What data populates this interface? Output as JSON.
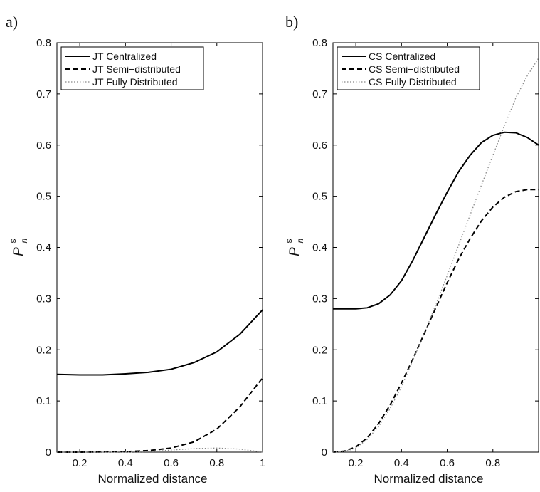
{
  "chart_data": [
    {
      "panel_label": "a)",
      "type": "line",
      "xlabel": "Normalized distance",
      "ylabel": "P",
      "ylabel_sub": "n",
      "ylabel_sup": "s",
      "xlim": [
        0.1,
        1.0
      ],
      "ylim": [
        0,
        0.8
      ],
      "xticks": [
        0.2,
        0.4,
        0.6,
        0.8,
        1
      ],
      "xtick_labels": [
        "0.2",
        "0.4",
        "0.6",
        "0.8",
        "1"
      ],
      "yticks": [
        0,
        0.1,
        0.2,
        0.3,
        0.4,
        0.5,
        0.6,
        0.7,
        0.8
      ],
      "ytick_labels": [
        "0",
        "0.1",
        "0.2",
        "0.3",
        "0.4",
        "0.5",
        "0.6",
        "0.7",
        "0.8"
      ],
      "grid": false,
      "legend_position": "top-left",
      "x": [
        0.1,
        0.2,
        0.3,
        0.4,
        0.5,
        0.6,
        0.7,
        0.8,
        0.9,
        1.0
      ],
      "series": [
        {
          "name": "JT Centralized",
          "style": "solid",
          "color": "#000000",
          "values": [
            0.152,
            0.151,
            0.151,
            0.153,
            0.156,
            0.162,
            0.175,
            0.196,
            0.23,
            0.278
          ]
        },
        {
          "name": "JT Semi−distributed",
          "style": "dashed",
          "color": "#000000",
          "values": [
            0.0,
            0.0,
            0.0005,
            0.001,
            0.003,
            0.008,
            0.02,
            0.045,
            0.088,
            0.145
          ]
        },
        {
          "name": "JT Fully Distributed",
          "style": "dotted",
          "color": "#888888",
          "values": [
            0.0,
            0.0,
            0.0,
            0.0,
            0.001,
            0.004,
            0.007,
            0.008,
            0.006,
            0.0
          ]
        }
      ]
    },
    {
      "panel_label": "b)",
      "type": "line",
      "xlabel": "Normalized distance",
      "ylabel": "P",
      "ylabel_sub": "n",
      "ylabel_sup": "s",
      "xlim": [
        0.1,
        1.0
      ],
      "ylim": [
        0,
        0.8
      ],
      "xticks": [
        0.2,
        0.4,
        0.6,
        0.8
      ],
      "xtick_labels": [
        "0.2",
        "0.4",
        "0.6",
        "0.8"
      ],
      "yticks": [
        0,
        0.1,
        0.2,
        0.3,
        0.4,
        0.5,
        0.6,
        0.7,
        0.8
      ],
      "ytick_labels": [
        "0",
        "0.1",
        "0.2",
        "0.3",
        "0.4",
        "0.5",
        "0.6",
        "0.7",
        "0.8"
      ],
      "grid": false,
      "legend_position": "top-left",
      "x": [
        0.1,
        0.15,
        0.2,
        0.25,
        0.3,
        0.35,
        0.4,
        0.45,
        0.5,
        0.55,
        0.6,
        0.65,
        0.7,
        0.75,
        0.8,
        0.85,
        0.9,
        0.95,
        1.0
      ],
      "series": [
        {
          "name": "CS Centralized",
          "style": "solid",
          "color": "#000000",
          "values": [
            0.28,
            0.28,
            0.28,
            0.282,
            0.29,
            0.307,
            0.335,
            0.375,
            0.42,
            0.465,
            0.508,
            0.548,
            0.58,
            0.605,
            0.619,
            0.625,
            0.624,
            0.615,
            0.6
          ]
        },
        {
          "name": "CS Semi−distributed",
          "style": "dashed",
          "color": "#000000",
          "values": [
            0.0,
            0.002,
            0.01,
            0.028,
            0.056,
            0.092,
            0.135,
            0.182,
            0.232,
            0.282,
            0.331,
            0.377,
            0.417,
            0.452,
            0.479,
            0.498,
            0.509,
            0.513,
            0.513
          ]
        },
        {
          "name": "CS Fully Distributed",
          "style": "dotted",
          "color": "#888888",
          "values": [
            0.0,
            0.001,
            0.008,
            0.025,
            0.05,
            0.085,
            0.128,
            0.18,
            0.232,
            0.288,
            0.345,
            0.404,
            0.463,
            0.522,
            0.58,
            0.637,
            0.692,
            0.735,
            0.77
          ]
        }
      ]
    }
  ]
}
